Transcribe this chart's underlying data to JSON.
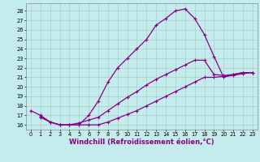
{
  "title": "",
  "xlabel": "Windchill (Refroidissement éolien,°C)",
  "bg_color": "#c5ecec",
  "line_color": "#880088",
  "grid_color": "#aacece",
  "xlim": [
    -0.5,
    23.5
  ],
  "ylim": [
    15.5,
    28.8
  ],
  "xticks": [
    0,
    1,
    2,
    3,
    4,
    5,
    6,
    7,
    8,
    9,
    10,
    11,
    12,
    13,
    14,
    15,
    16,
    17,
    18,
    19,
    20,
    21,
    22,
    23
  ],
  "yticks": [
    16,
    17,
    18,
    19,
    20,
    21,
    22,
    23,
    24,
    25,
    26,
    27,
    28
  ],
  "line1_x": [
    0,
    1,
    2,
    3,
    4,
    5,
    6,
    7,
    8,
    9,
    10,
    11,
    12,
    13,
    14,
    15,
    16,
    17,
    18,
    19,
    20,
    21,
    22,
    23
  ],
  "line1_y": [
    17.5,
    17.0,
    16.3,
    16.0,
    16.0,
    16.0,
    17.0,
    18.5,
    20.5,
    22.0,
    23.0,
    24.0,
    25.0,
    26.5,
    27.2,
    28.0,
    28.2,
    27.2,
    25.5,
    23.2,
    21.0,
    21.3,
    21.5,
    21.5
  ],
  "line2_x": [
    1,
    2,
    3,
    4,
    5,
    6,
    7,
    8,
    9,
    10,
    11,
    12,
    13,
    14,
    15,
    16,
    17,
    18,
    19,
    20,
    21,
    22,
    23
  ],
  "line2_y": [
    16.9,
    16.3,
    16.0,
    16.0,
    16.2,
    16.5,
    16.8,
    17.5,
    18.2,
    18.9,
    19.5,
    20.2,
    20.8,
    21.3,
    21.8,
    22.3,
    22.8,
    22.8,
    21.3,
    21.2,
    21.3,
    21.5,
    21.5
  ],
  "line3_x": [
    1,
    2,
    3,
    4,
    5,
    6,
    7,
    8,
    9,
    10,
    11,
    12,
    13,
    14,
    15,
    16,
    17,
    18,
    19,
    20,
    21,
    22,
    23
  ],
  "line3_y": [
    16.8,
    16.3,
    16.0,
    16.0,
    16.0,
    16.0,
    16.0,
    16.3,
    16.7,
    17.1,
    17.5,
    18.0,
    18.5,
    19.0,
    19.5,
    20.0,
    20.5,
    21.0,
    21.0,
    21.1,
    21.2,
    21.4,
    21.5
  ],
  "marker": "+",
  "markersize": 3.5,
  "linewidth": 0.9,
  "tick_fontsize": 4.8,
  "xlabel_fontsize": 6.0
}
